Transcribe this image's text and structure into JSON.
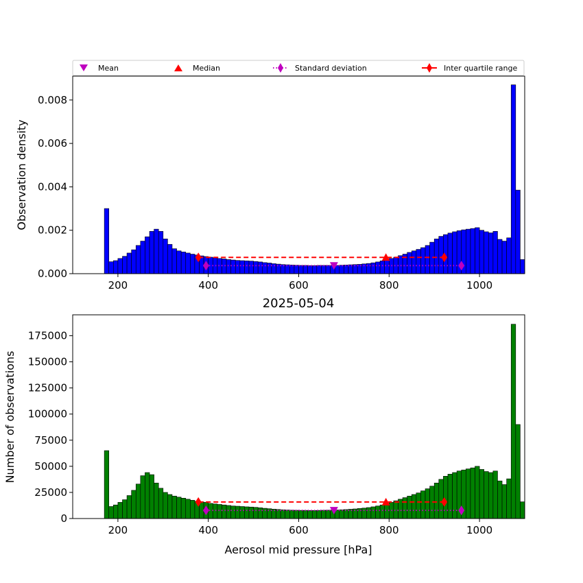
{
  "chart_data": [
    {
      "type": "bar",
      "title": "",
      "xlabel": "",
      "ylabel": "Observation density",
      "bar_color": "#0000ff",
      "xlim": [
        100,
        1100
      ],
      "ylim": [
        0,
        0.0091
      ],
      "xticks": [
        200,
        400,
        600,
        800,
        1000
      ],
      "yticks": [
        0.0,
        0.002,
        0.004,
        0.006,
        0.008
      ],
      "ytick_labels": [
        "0.000",
        "0.002",
        "0.004",
        "0.006",
        "0.008"
      ],
      "bin_start": 170,
      "bin_width": 10,
      "values": [
        0.003,
        0.00055,
        0.0006,
        0.0007,
        0.0008,
        0.00095,
        0.0011,
        0.0013,
        0.0015,
        0.0017,
        0.00195,
        0.00205,
        0.00195,
        0.0016,
        0.00135,
        0.00115,
        0.00105,
        0.001,
        0.00095,
        0.0009,
        0.00086,
        0.00082,
        0.00079,
        0.00076,
        0.00073,
        0.0007,
        0.00068,
        0.00065,
        0.00063,
        0.00061,
        0.0006,
        0.00059,
        0.00058,
        0.00056,
        0.00054,
        0.00051,
        0.00049,
        0.00046,
        0.00044,
        0.00042,
        0.00041,
        0.0004,
        0.00039,
        0.00038,
        0.00038,
        0.00037,
        0.00037,
        0.00038,
        0.00038,
        0.00038,
        0.00038,
        0.00038,
        0.00039,
        0.0004,
        0.00041,
        0.00042,
        0.00043,
        0.00045,
        0.00047,
        0.0005,
        0.00054,
        0.00059,
        0.00064,
        0.0007,
        0.00076,
        0.00083,
        0.0009,
        0.00098,
        0.00105,
        0.00112,
        0.0012,
        0.0013,
        0.00145,
        0.0016,
        0.00172,
        0.0018,
        0.00187,
        0.00193,
        0.00198,
        0.00202,
        0.00205,
        0.00208,
        0.00212,
        0.002,
        0.00193,
        0.00188,
        0.00195,
        0.00158,
        0.0015,
        0.00165,
        0.0087,
        0.00385,
        0.00065
      ],
      "stats": {
        "mean": {
          "x": 678,
          "y": 0.00037
        },
        "median": {
          "x": 793,
          "y": 0.00075
        },
        "std": {
          "x": [
            395,
            960
          ],
          "y": 0.00037
        },
        "iqr": {
          "x": [
            378,
            922
          ],
          "y": 0.00075
        }
      }
    },
    {
      "type": "bar",
      "title": "2025-05-04",
      "xlabel": "Aerosol mid pressure [hPa]",
      "ylabel": "Number of observations",
      "bar_color": "#008000",
      "xlim": [
        100,
        1100
      ],
      "ylim": [
        0,
        195000
      ],
      "xticks": [
        200,
        400,
        600,
        800,
        1000
      ],
      "yticks": [
        0,
        25000,
        50000,
        75000,
        100000,
        125000,
        150000,
        175000
      ],
      "ytick_labels": [
        "0",
        "25000",
        "50000",
        "75000",
        "100000",
        "125000",
        "150000",
        "175000"
      ],
      "bin_start": 170,
      "bin_width": 10,
      "values": [
        65000,
        11500,
        13000,
        15500,
        18000,
        22000,
        27000,
        33000,
        41000,
        44000,
        42000,
        34000,
        29000,
        25000,
        23000,
        21500,
        20500,
        19500,
        18500,
        17500,
        16500,
        16000,
        15500,
        14500,
        14000,
        13500,
        13000,
        12500,
        12000,
        11800,
        11500,
        11200,
        11000,
        10700,
        10300,
        9800,
        9400,
        9000,
        8700,
        8400,
        8200,
        8000,
        7900,
        7800,
        7800,
        7700,
        7700,
        7800,
        7900,
        8000,
        8100,
        8200,
        8400,
        8600,
        8900,
        9200,
        9600,
        10000,
        10500,
        11200,
        12000,
        13000,
        14200,
        15500,
        17000,
        18500,
        20000,
        21500,
        23000,
        24500,
        26500,
        28500,
        31000,
        34000,
        37500,
        40500,
        42500,
        44000,
        45500,
        46500,
        47500,
        48500,
        50000,
        47000,
        45000,
        44000,
        45500,
        36000,
        32500,
        38000,
        186000,
        90000,
        16000
      ],
      "stats": {
        "mean": {
          "x": 678,
          "y": 7800
        },
        "median": {
          "x": 793,
          "y": 15800
        },
        "std": {
          "x": [
            395,
            960
          ],
          "y": 7800
        },
        "iqr": {
          "x": [
            378,
            922
          ],
          "y": 15800
        }
      }
    }
  ],
  "legend": {
    "placement": "top",
    "entries": [
      {
        "label": "Mean",
        "color": "#bf00bf",
        "marker": "triangle-down",
        "line": "none"
      },
      {
        "label": "Median",
        "color": "#ff0000",
        "marker": "triangle-up",
        "line": "none"
      },
      {
        "label": "Standard deviation",
        "color": "#bf00bf",
        "marker": "diamond",
        "line": "dotted"
      },
      {
        "label": "Inter quartile range",
        "color": "#ff0000",
        "marker": "diamond",
        "line": "solid"
      }
    ]
  }
}
